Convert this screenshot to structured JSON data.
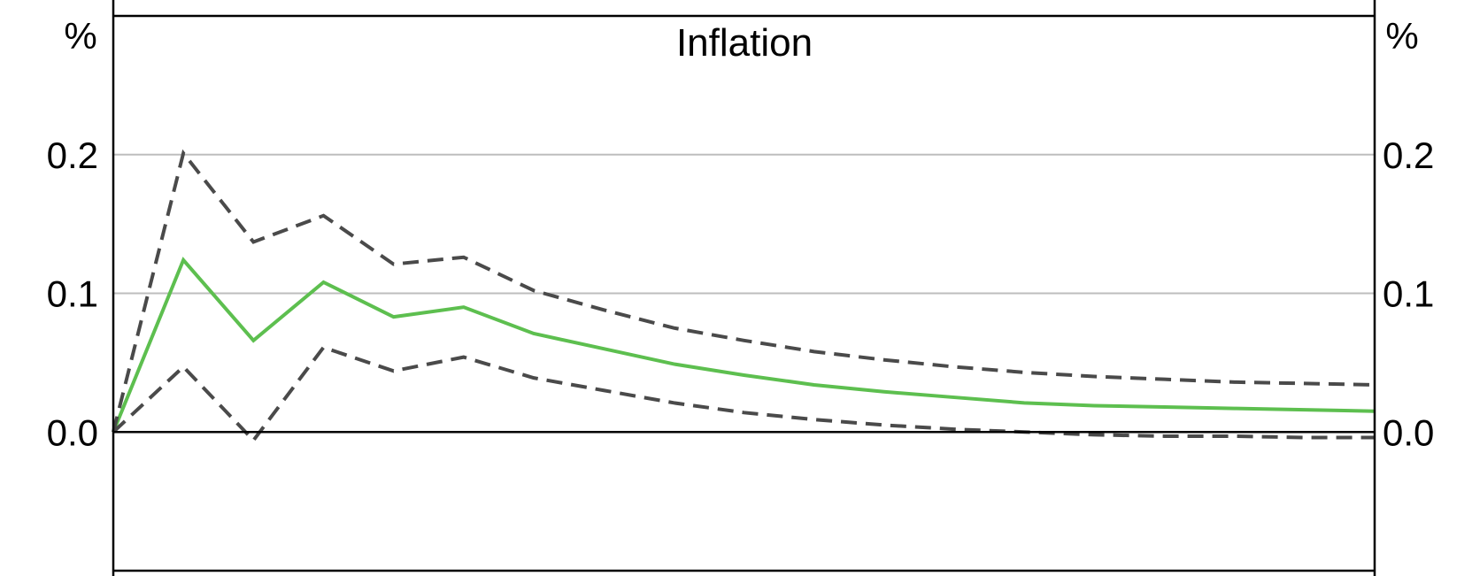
{
  "chart_data": {
    "type": "line",
    "title": "Inflation",
    "y_unit_left": "%",
    "y_unit_right": "%",
    "ylim": [
      -0.1,
      0.3
    ],
    "y_ticks": [
      0.0,
      0.1,
      0.2
    ],
    "y_tick_labels": [
      "0.0",
      "0.1",
      "0.2"
    ],
    "xlim": [
      0,
      18
    ],
    "x": [
      0,
      1,
      2,
      3,
      4,
      5,
      6,
      7,
      8,
      9,
      10,
      11,
      12,
      13,
      14,
      15,
      16,
      17,
      18
    ],
    "grid": true,
    "series": [
      {
        "style": "solid",
        "color": "#5dbf4f",
        "values": [
          0.0,
          0.124,
          0.066,
          0.108,
          0.083,
          0.09,
          0.071,
          0.06,
          0.049,
          0.041,
          0.034,
          0.029,
          0.025,
          0.021,
          0.019,
          0.018,
          0.017,
          0.016,
          0.015
        ]
      },
      {
        "style": "dashed",
        "color": "#4a4a4a",
        "values": [
          0.0,
          0.201,
          0.137,
          0.156,
          0.121,
          0.126,
          0.102,
          0.088,
          0.075,
          0.066,
          0.058,
          0.052,
          0.047,
          0.043,
          0.04,
          0.038,
          0.036,
          0.035,
          0.034
        ]
      },
      {
        "style": "dashed",
        "color": "#4a4a4a",
        "values": [
          0.0,
          0.047,
          -0.006,
          0.061,
          0.044,
          0.054,
          0.039,
          0.03,
          0.021,
          0.014,
          0.009,
          0.005,
          0.002,
          0.0,
          -0.002,
          -0.003,
          -0.003,
          -0.004,
          -0.004
        ]
      }
    ],
    "colors": {
      "grid": "#bdbdbd",
      "axis": "#000000"
    }
  }
}
